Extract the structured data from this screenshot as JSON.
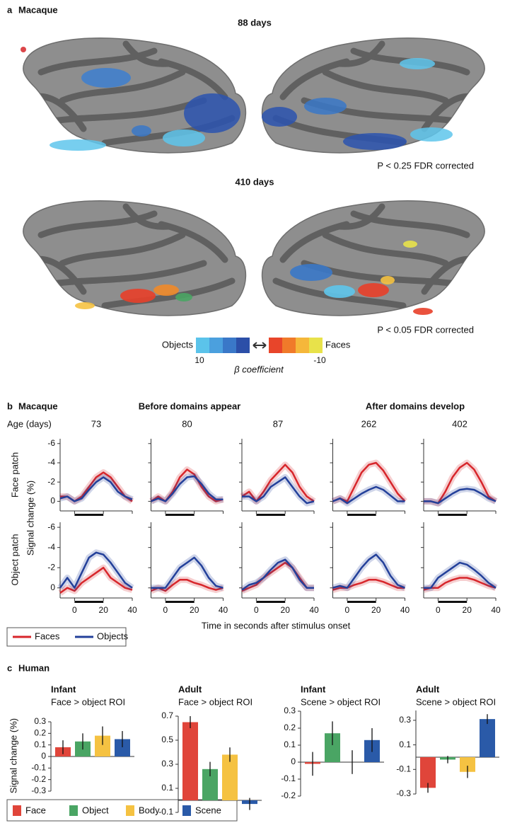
{
  "panel_a": {
    "letter": "a",
    "species": "Macaque",
    "maps": [
      {
        "age": "88 days",
        "threshold": "P < 0.25 FDR corrected"
      },
      {
        "age": "410 days",
        "threshold": "P < 0.05 FDR corrected"
      }
    ],
    "colorbar": {
      "low_label": "Objects",
      "high_label": "Faces",
      "ticks": [
        10,
        -10
      ],
      "title": "β coefficient"
    }
  },
  "panel_b": {
    "letter": "b",
    "species": "Macaque",
    "groups": [
      "Before domains appear",
      "After domains develop"
    ],
    "age_label": "Age (days)",
    "ages": [
      73,
      80,
      87,
      262,
      402
    ],
    "row_labels": [
      "Face  patch",
      "Object patch"
    ],
    "y_label": "Signal change (%)",
    "x_label": "Time in seconds after stimulus onset",
    "legend": [
      {
        "name": "Faces",
        "color": "#d7262b"
      },
      {
        "name": "Objects",
        "color": "#23409a"
      }
    ]
  },
  "panel_c": {
    "letter": "c",
    "species": "Human",
    "y_label": "Signal change (%)",
    "legend": [
      "Face",
      "Object",
      "Body",
      "Scene"
    ],
    "colors": [
      "#e0453a",
      "#4aa564",
      "#f5c242",
      "#2a5aa8"
    ]
  },
  "chart_data": [
    {
      "type": "line",
      "x": [
        -10,
        -5,
        0,
        5,
        10,
        15,
        20,
        25,
        30,
        35,
        40
      ],
      "xlim": [
        -10,
        40
      ],
      "xticks": [
        0,
        20,
        40
      ],
      "ylim": [
        1,
        -6.5
      ],
      "yticks": [
        -6,
        -4,
        -2,
        0
      ],
      "stimulus": [
        0,
        20
      ],
      "series": [
        {
          "values": [
            -0.5,
            -0.5,
            0,
            -0.5,
            -1.5,
            -2.5,
            -3,
            -2.5,
            -1.5,
            -0.5,
            0
          ]
        },
        {
          "values": [
            -0.3,
            -0.5,
            0,
            -0.3,
            -1.2,
            -2,
            -2.5,
            -2,
            -1,
            -0.5,
            -0.2
          ]
        }
      ]
    },
    {
      "type": "line",
      "x": [
        -10,
        -5,
        0,
        5,
        10,
        15,
        20,
        25,
        30,
        35,
        40
      ],
      "xlim": [
        -10,
        40
      ],
      "xticks": [
        0,
        20,
        40
      ],
      "ylim": [
        1,
        -6.5
      ],
      "yticks": [
        -6,
        -4,
        -2,
        0
      ],
      "stimulus": [
        0,
        20
      ],
      "series": [
        {
          "values": [
            0,
            -0.5,
            0,
            -1,
            -2.5,
            -3.3,
            -2.8,
            -1.5,
            -0.5,
            0,
            -0.2
          ]
        },
        {
          "values": [
            0,
            -0.3,
            0,
            -0.8,
            -1.8,
            -2.5,
            -2.6,
            -1.8,
            -0.8,
            -0.2,
            -0.2
          ]
        }
      ]
    },
    {
      "type": "line",
      "x": [
        -10,
        -5,
        0,
        5,
        10,
        15,
        20,
        25,
        30,
        35,
        40
      ],
      "xlim": [
        -10,
        40
      ],
      "xticks": [
        0,
        20,
        40
      ],
      "ylim": [
        1,
        -6.5
      ],
      "yticks": [
        -6,
        -4,
        -2,
        0
      ],
      "stimulus": [
        0,
        20
      ],
      "series": [
        {
          "values": [
            -0.5,
            -1,
            0,
            -1,
            -2.2,
            -3,
            -3.8,
            -3,
            -1.5,
            -0.5,
            0
          ]
        },
        {
          "values": [
            -0.5,
            -0.5,
            0,
            -0.5,
            -1.5,
            -2,
            -2.5,
            -1.5,
            -0.5,
            0.2,
            0
          ]
        }
      ]
    },
    {
      "type": "line",
      "x": [
        -10,
        -5,
        0,
        5,
        10,
        15,
        20,
        25,
        30,
        35,
        40
      ],
      "xlim": [
        -10,
        40
      ],
      "xticks": [
        0,
        20,
        40
      ],
      "ylim": [
        1,
        -6.5
      ],
      "yticks": [
        -6,
        -4,
        -2,
        0
      ],
      "stimulus": [
        0,
        20
      ],
      "series": [
        {
          "values": [
            0,
            -0.3,
            0,
            -1.5,
            -3,
            -3.8,
            -4,
            -3.2,
            -2,
            -0.8,
            0
          ]
        },
        {
          "values": [
            0,
            -0.3,
            0.2,
            -0.3,
            -0.8,
            -1.2,
            -1.5,
            -1.2,
            -0.6,
            0,
            0
          ]
        }
      ]
    },
    {
      "type": "line",
      "x": [
        -10,
        -5,
        0,
        5,
        10,
        15,
        20,
        25,
        30,
        35,
        40
      ],
      "xlim": [
        -10,
        40
      ],
      "xticks": [
        0,
        20,
        40
      ],
      "ylim": [
        1,
        -6.5
      ],
      "yticks": [
        -6,
        -4,
        -2,
        0
      ],
      "stimulus": [
        0,
        20
      ],
      "series": [
        {
          "values": [
            0,
            0,
            0.2,
            -1,
            -2.5,
            -3.5,
            -4,
            -3.3,
            -2,
            -0.5,
            0
          ]
        },
        {
          "values": [
            0,
            0,
            0.2,
            -0.3,
            -0.8,
            -1.2,
            -1.3,
            -1.2,
            -0.8,
            -0.3,
            0
          ]
        }
      ]
    },
    {
      "type": "line",
      "x": [
        -10,
        -5,
        0,
        5,
        10,
        15,
        20,
        25,
        30,
        35,
        40
      ],
      "xlim": [
        -10,
        40
      ],
      "xticks": [
        0,
        20,
        40
      ],
      "ylim": [
        1,
        -6.5
      ],
      "yticks": [
        -6,
        -4,
        -2,
        0
      ],
      "stimulus": [
        0,
        20
      ],
      "series": [
        {
          "values": [
            0.5,
            0,
            0.3,
            -0.5,
            -1,
            -1.5,
            -2,
            -1,
            -0.5,
            0,
            0.2
          ]
        },
        {
          "values": [
            0,
            -1,
            0,
            -1.5,
            -3,
            -3.5,
            -3.3,
            -2.5,
            -1.5,
            -0.5,
            0
          ]
        }
      ]
    },
    {
      "type": "line",
      "x": [
        -10,
        -5,
        0,
        5,
        10,
        15,
        20,
        25,
        30,
        35,
        40
      ],
      "xlim": [
        -10,
        40
      ],
      "xticks": [
        0,
        20,
        40
      ],
      "ylim": [
        1,
        -6.5
      ],
      "yticks": [
        -6,
        -4,
        -2,
        0
      ],
      "stimulus": [
        0,
        20
      ],
      "series": [
        {
          "values": [
            0.3,
            0,
            0.3,
            -0.3,
            -0.8,
            -0.8,
            -0.5,
            -0.3,
            0,
            0.2,
            0
          ]
        },
        {
          "values": [
            0,
            0,
            0,
            -1,
            -2,
            -2.5,
            -3,
            -2.2,
            -1,
            -0.2,
            0
          ]
        }
      ]
    },
    {
      "type": "line",
      "x": [
        -10,
        -5,
        0,
        5,
        10,
        15,
        20,
        25,
        30,
        35,
        40
      ],
      "xlim": [
        -10,
        40
      ],
      "xticks": [
        0,
        20,
        40
      ],
      "ylim": [
        1,
        -6.5
      ],
      "yticks": [
        -6,
        -4,
        -2,
        0
      ],
      "stimulus": [
        0,
        20
      ],
      "series": [
        {
          "values": [
            0.3,
            0,
            -0.3,
            -1,
            -1.5,
            -2,
            -2.5,
            -2,
            -1,
            0,
            0
          ]
        },
        {
          "values": [
            0.2,
            -0.3,
            -0.5,
            -1,
            -1.8,
            -2.5,
            -2.8,
            -2,
            -0.8,
            0,
            0
          ]
        }
      ]
    },
    {
      "type": "line",
      "x": [
        -10,
        -5,
        0,
        5,
        10,
        15,
        20,
        25,
        30,
        35,
        40
      ],
      "xlim": [
        -10,
        40
      ],
      "xticks": [
        0,
        20,
        40
      ],
      "ylim": [
        1,
        -6.5
      ],
      "yticks": [
        -6,
        -4,
        -2,
        0
      ],
      "stimulus": [
        0,
        20
      ],
      "series": [
        {
          "values": [
            0.2,
            0,
            0,
            -0.3,
            -0.5,
            -0.8,
            -0.8,
            -0.6,
            -0.3,
            0,
            0
          ]
        },
        {
          "values": [
            0,
            -0.2,
            0,
            -1,
            -2,
            -2.8,
            -3.3,
            -2.5,
            -1.2,
            -0.3,
            0
          ]
        }
      ]
    },
    {
      "type": "line",
      "x": [
        -10,
        -5,
        0,
        5,
        10,
        15,
        20,
        25,
        30,
        35,
        40
      ],
      "xlim": [
        -10,
        40
      ],
      "xticks": [
        0,
        20,
        40
      ],
      "ylim": [
        1,
        -6.5
      ],
      "yticks": [
        -6,
        -4,
        -2,
        0
      ],
      "stimulus": [
        0,
        20
      ],
      "series": [
        {
          "values": [
            0.2,
            0,
            0,
            -0.5,
            -0.8,
            -1,
            -1,
            -0.8,
            -0.5,
            -0.2,
            0
          ]
        },
        {
          "values": [
            0,
            0,
            -1,
            -1.5,
            -2,
            -2.5,
            -2.3,
            -1.8,
            -1.2,
            -0.5,
            0
          ]
        }
      ]
    },
    {
      "type": "bar",
      "title": "Infant",
      "subtitle": "Face > object ROI",
      "values": [
        0.08,
        0.13,
        0.18,
        0.15
      ],
      "errors": [
        0.06,
        0.07,
        0.08,
        0.07
      ],
      "ylim": [
        -0.3,
        0.3
      ],
      "yticks": [
        -0.3,
        -0.2,
        -0.1,
        0,
        0.1,
        0.2,
        0.3
      ]
    },
    {
      "type": "bar",
      "title": "Adult",
      "subtitle": "Face > object ROI",
      "values": [
        0.65,
        0.26,
        0.38,
        -0.03
      ],
      "errors": [
        0.05,
        0.06,
        0.06,
        0.05
      ],
      "ylim": [
        -0.1,
        0.7
      ],
      "yticks": [
        -0.1,
        0.1,
        0.3,
        0.5,
        0.7
      ]
    },
    {
      "type": "bar",
      "title": "Infant",
      "subtitle": "Scene > object ROI",
      "values": [
        -0.01,
        0.17,
        0,
        0.13
      ],
      "errors": [
        0.07,
        0.07,
        0.07,
        0.07
      ],
      "ylim": [
        -0.2,
        0.3
      ],
      "yticks": [
        -0.2,
        -0.1,
        0,
        0.1,
        0.2,
        0.3
      ]
    },
    {
      "type": "bar",
      "title": "Adult",
      "subtitle": "Scene > object ROI",
      "values": [
        -0.25,
        -0.02,
        -0.12,
        0.31
      ],
      "errors": [
        0.04,
        0.03,
        0.05,
        0.04
      ],
      "ylim": [
        -0.3,
        0.38
      ],
      "yticks": [
        -0.3,
        -0.1,
        0.1,
        0.3
      ]
    }
  ]
}
